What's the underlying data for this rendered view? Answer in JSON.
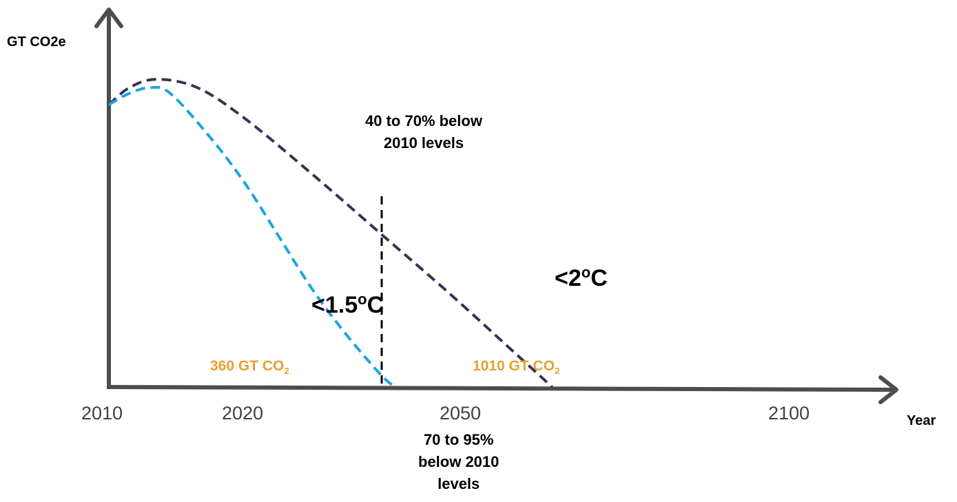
{
  "chart_data": {
    "type": "line",
    "ylabel": "GT CO2e",
    "xlabel": "Year",
    "x_ticks": [
      "2010",
      "2020",
      "2050",
      "2100"
    ],
    "series": [
      {
        "color": "#3b3052",
        "x": [
          2010,
          2013,
          2017,
          2023,
          2030,
          2040,
          2050,
          2060,
          2070,
          2075
        ],
        "y": [
          1.0,
          1.06,
          1.09,
          1.06,
          0.95,
          0.75,
          0.54,
          0.33,
          0.11,
          0.0
        ]
      },
      {
        "color": "#1aa6e0",
        "x": [
          2010,
          2013,
          2016,
          2019,
          2025,
          2030,
          2035,
          2040,
          2045,
          2050,
          2052
        ],
        "y": [
          1.0,
          1.04,
          1.06,
          1.04,
          0.88,
          0.72,
          0.53,
          0.34,
          0.18,
          0.04,
          0.0
        ]
      }
    ],
    "vline_x": 2050,
    "annotations": {
      "two_deg_prefix": "<2",
      "two_deg_sup": "o",
      "two_deg_suffix": "C",
      "onefive_deg_prefix": "<1.5",
      "onefive_deg_sup": "o",
      "onefive_deg_suffix": "C",
      "upper_note_line1": "40 to 70% below",
      "upper_note_line2": "2010 levels",
      "lower_note_line1": "70 to 95%",
      "lower_note_line2": "below 2010",
      "lower_note_line3": "levels",
      "budget_left_main": "360 GT CO",
      "budget_left_sub": "2",
      "budget_right_main": "1010 GT CO",
      "budget_right_sub": "2"
    }
  }
}
